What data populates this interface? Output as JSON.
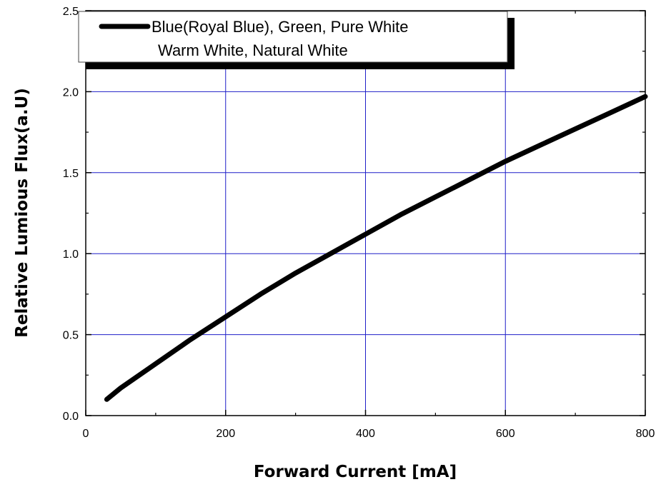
{
  "chart_data": {
    "type": "line",
    "xlabel": "Forward Current [mA]",
    "ylabel": "Relative Lumious Flux(a.U)",
    "xlim": [
      0,
      800
    ],
    "ylim": [
      0,
      2.5
    ],
    "x_ticks": [
      "0",
      "200",
      "400",
      "600",
      "800"
    ],
    "y_ticks": [
      "0.0",
      "0.5",
      "1.0",
      "1.5",
      "2.0",
      "2.5"
    ],
    "grid": true,
    "grid_color": "#1f1fc8",
    "line_color": "#000000",
    "legend": {
      "placement": "top-left",
      "lines": [
        "Blue(Royal Blue), Green, Pure White",
        "Warm White, Natural White"
      ]
    },
    "series": [
      {
        "x": [
          30,
          50,
          100,
          150,
          200,
          250,
          300,
          350,
          400,
          450,
          500,
          550,
          600,
          650,
          700,
          750,
          800
        ],
        "y": [
          0.1,
          0.17,
          0.32,
          0.47,
          0.61,
          0.75,
          0.88,
          1.0,
          1.12,
          1.24,
          1.35,
          1.46,
          1.57,
          1.67,
          1.77,
          1.87,
          1.97
        ]
      }
    ]
  }
}
